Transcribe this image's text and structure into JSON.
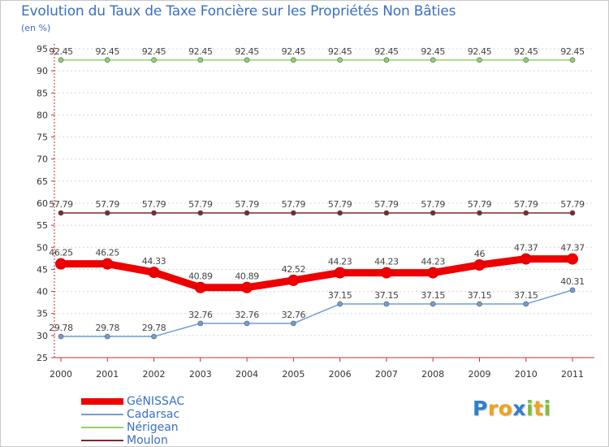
{
  "header": {
    "title": "Evolution du Taux de Taxe Foncière sur les Propriétés Non Bâties",
    "unit": "(en %)"
  },
  "chart_data": {
    "type": "line",
    "categories": [
      "2000",
      "2001",
      "2002",
      "2003",
      "2004",
      "2005",
      "2006",
      "2007",
      "2008",
      "2009",
      "2010",
      "2011"
    ],
    "ylim": [
      25,
      95
    ],
    "yticks": [
      25,
      30,
      35,
      40,
      45,
      50,
      55,
      60,
      65,
      70,
      75,
      80,
      85,
      90,
      95
    ],
    "grid": "horizontal-dashed",
    "series": [
      {
        "name": "GéNISSAC",
        "color": "#ee0000",
        "values": [
          46.25,
          46.25,
          44.33,
          40.89,
          40.89,
          42.52,
          44.23,
          44.23,
          44.23,
          46,
          47.37,
          47.37
        ],
        "labels": [
          "46.25",
          "46.25",
          "44.33",
          "40.89",
          "40.89",
          "42.52",
          "44.23",
          "44.23",
          "44.23",
          "46",
          "47.37",
          "47.37"
        ]
      },
      {
        "name": "Cadarsac",
        "color": "#6f9fd8",
        "values": [
          29.78,
          29.78,
          29.78,
          32.76,
          32.76,
          32.76,
          37.15,
          37.15,
          37.15,
          37.15,
          37.15,
          40.31
        ],
        "labels": [
          "29.78",
          "29.78",
          "29.78",
          "32.76",
          "32.76",
          "32.76",
          "37.15",
          "37.15",
          "37.15",
          "37.15",
          "37.15",
          "40.31"
        ]
      },
      {
        "name": "Nérigean",
        "color": "#8fd46a",
        "values": [
          92.45,
          92.45,
          92.45,
          92.45,
          92.45,
          92.45,
          92.45,
          92.45,
          92.45,
          92.45,
          92.45,
          92.45
        ],
        "labels": [
          "92.45",
          "92.45",
          "92.45",
          "92.45",
          "92.45",
          "92.45",
          "92.45",
          "92.45",
          "92.45",
          "92.45",
          "92.45",
          "92.45"
        ]
      },
      {
        "name": "Moulon",
        "color": "#7a2a2a",
        "values": [
          57.79,
          57.79,
          57.79,
          57.79,
          57.79,
          57.79,
          57.79,
          57.79,
          57.79,
          57.79,
          57.79,
          57.79
        ],
        "labels": [
          "57.79",
          "57.79",
          "57.79",
          "57.79",
          "57.79",
          "57.79",
          "57.79",
          "57.79",
          "57.79",
          "57.79",
          "57.79",
          "57.79"
        ]
      }
    ]
  },
  "legend": {
    "items": [
      {
        "label": "GéNISSAC"
      },
      {
        "label": "Cadarsac"
      },
      {
        "label": "Nérigean"
      },
      {
        "label": "Moulon"
      }
    ]
  },
  "logo": {
    "letters": [
      "P",
      "r",
      "o",
      "x",
      "i",
      "t",
      "i"
    ],
    "colors": [
      "#2f7fd0",
      "#f2a21a",
      "#f2a21a",
      "#2f7fd0",
      "#7fbf3a",
      "#f2a21a",
      "#7fbf3a"
    ]
  }
}
